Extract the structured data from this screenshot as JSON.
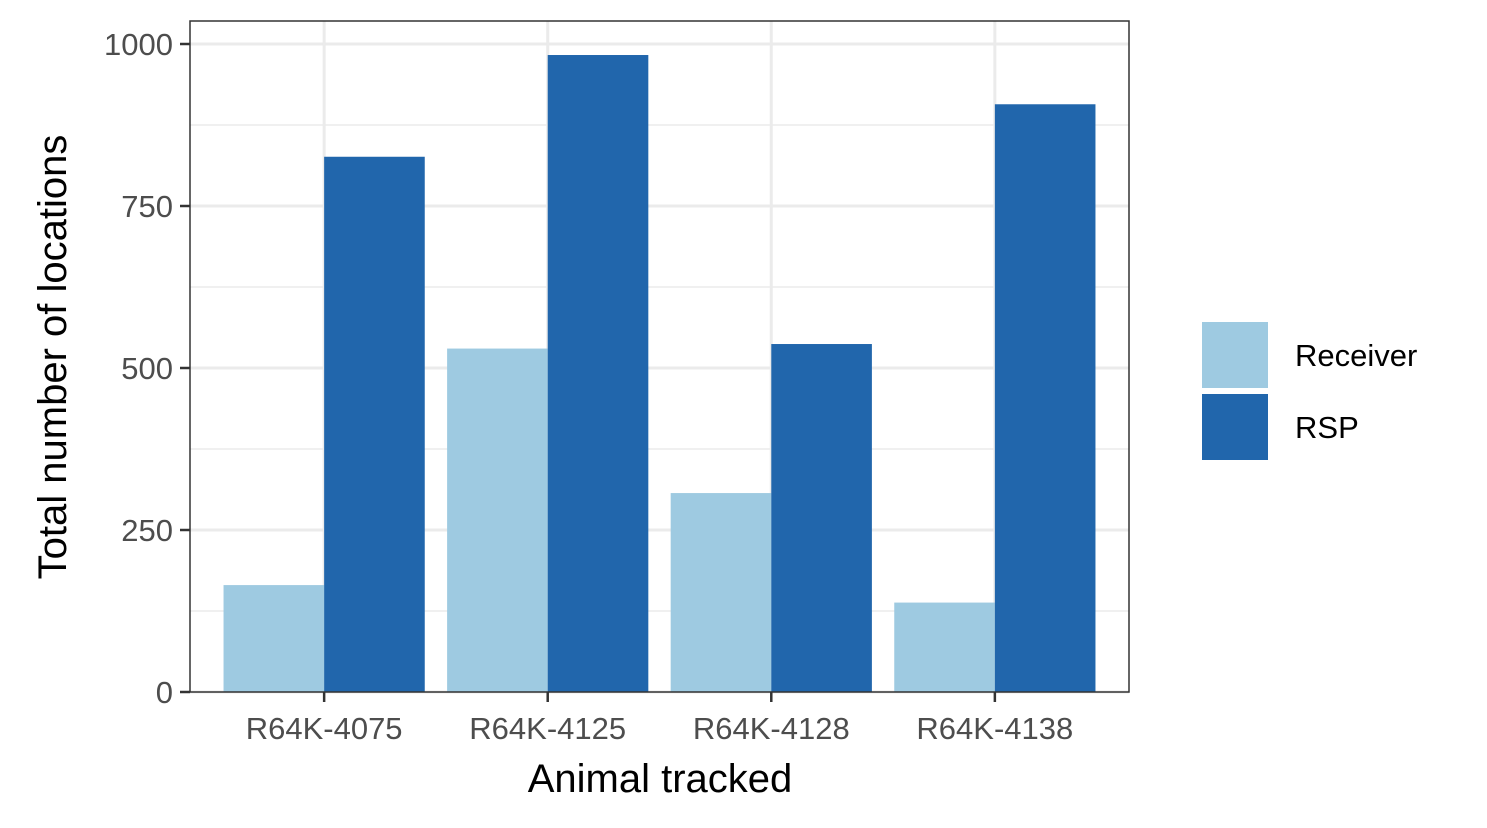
{
  "chart_data": {
    "type": "bar",
    "categories": [
      "R64K-4075",
      "R64K-4125",
      "R64K-4128",
      "R64K-4138"
    ],
    "series": [
      {
        "name": "Receiver",
        "values": [
          165,
          530,
          307,
          138
        ],
        "color": "#9ECAE1"
      },
      {
        "name": "RSP",
        "values": [
          826,
          983,
          537,
          907
        ],
        "color": "#2166AC"
      }
    ],
    "xlabel": "Animal tracked",
    "ylabel": "Total number of locations",
    "ylim": [
      0,
      1000
    ],
    "yticks": [
      "0",
      "250",
      "500",
      "750",
      "1000"
    ],
    "grid": true,
    "legend_position": "right"
  }
}
